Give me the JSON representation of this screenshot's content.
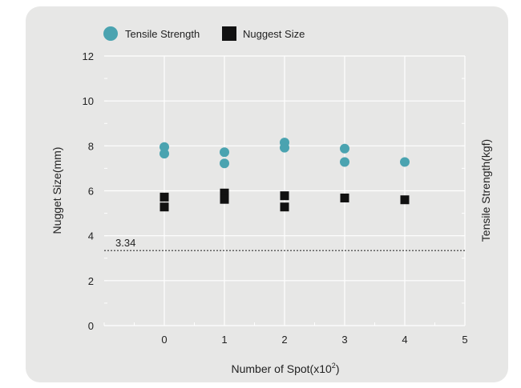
{
  "chart_data": {
    "type": "scatter",
    "title": "",
    "xlabel": "Number of Spot(x10",
    "xlabel_sup": "2",
    "xlabel_end": ")",
    "ylabel": "Nugget Size(mm)",
    "y2label": "Tensile Strength(kgf)",
    "xlim": [
      -1,
      5
    ],
    "ylim": [
      0,
      12
    ],
    "xticks": [
      "0",
      "1",
      "2",
      "3",
      "4",
      "5"
    ],
    "yticks": [
      "0",
      "2",
      "4",
      "6",
      "8",
      "10",
      "12"
    ],
    "grid": true,
    "legend_position": "top",
    "reference_line": {
      "value": 3.34,
      "label": "3.34",
      "style": "dotted"
    },
    "series": [
      {
        "name": "Tensile Strength",
        "marker": "circle",
        "color": "#4aa3b0",
        "points": [
          [
            0,
            7.95
          ],
          [
            0,
            7.65
          ],
          [
            1,
            7.72
          ],
          [
            1,
            7.22
          ],
          [
            2,
            8.15
          ],
          [
            2,
            7.92
          ],
          [
            3,
            7.88
          ],
          [
            3,
            7.28
          ],
          [
            4,
            7.28
          ]
        ]
      },
      {
        "name": "Nuggest Size",
        "marker": "square",
        "color": "#111111",
        "points": [
          [
            0,
            5.72
          ],
          [
            0,
            5.28
          ],
          [
            1,
            5.9
          ],
          [
            1,
            5.62
          ],
          [
            2,
            5.78
          ],
          [
            2,
            5.28
          ],
          [
            3,
            5.68
          ],
          [
            4,
            5.6
          ]
        ]
      }
    ]
  }
}
